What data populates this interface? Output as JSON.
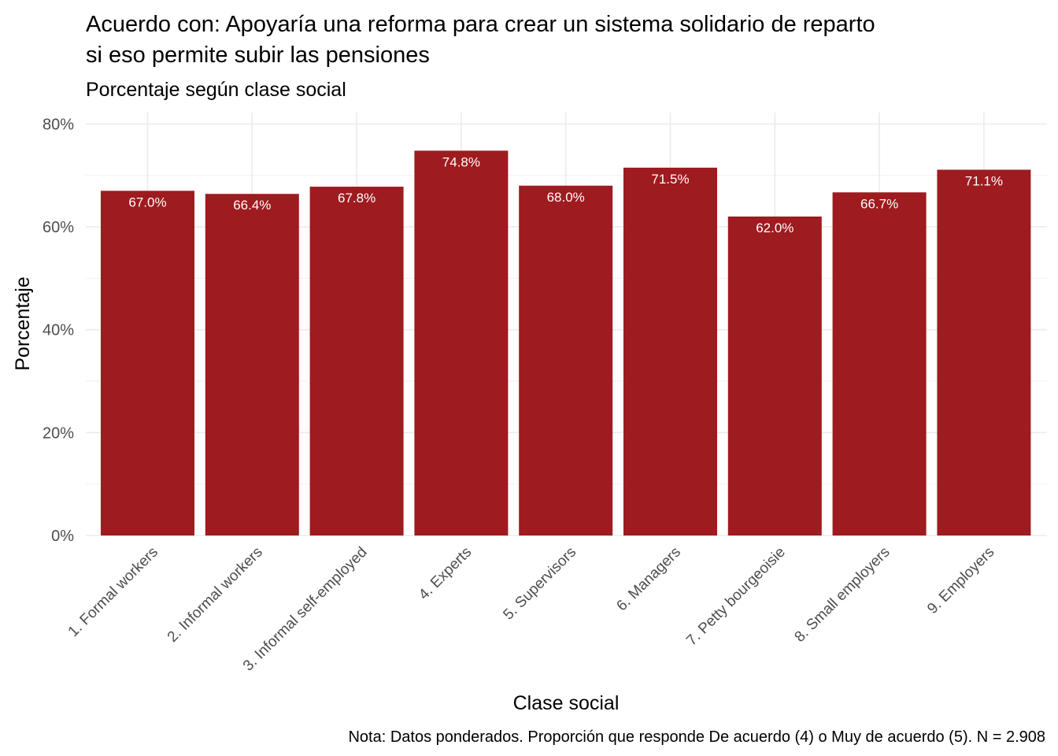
{
  "chart_data": {
    "type": "bar",
    "title_lines": [
      "Acuerdo con: Apoyaría una reforma para crear un sistema solidario de reparto",
      "si eso permite subir las pensiones"
    ],
    "subtitle": "Porcentaje según clase social",
    "xlabel": "Clase social",
    "ylabel": "Porcentaje",
    "caption": "Nota: Datos ponderados. Proporción que responde De acuerdo (4) o Muy de acuerdo (5). N = 2.908",
    "categories": [
      "1. Formal workers",
      "2. Informal workers",
      "3. Informal self-employed",
      "4. Experts",
      "5. Supervisors",
      "6. Managers",
      "7. Petty bourgeoisie",
      "8. Small employers",
      "9. Employers"
    ],
    "values": [
      67.0,
      66.4,
      67.8,
      74.8,
      68.0,
      71.5,
      62.0,
      66.7,
      71.1
    ],
    "data_labels": [
      "67.0%",
      "66.4%",
      "67.8%",
      "74.8%",
      "68.0%",
      "71.5%",
      "62.0%",
      "66.7%",
      "71.1%"
    ],
    "yticks": [
      0,
      20,
      40,
      60,
      80
    ],
    "ytick_labels": [
      "0%",
      "20%",
      "40%",
      "60%",
      "80%"
    ],
    "ylim": [
      0,
      80
    ],
    "grid": true,
    "legend": "none",
    "bar_color": "#9E1B1F"
  }
}
